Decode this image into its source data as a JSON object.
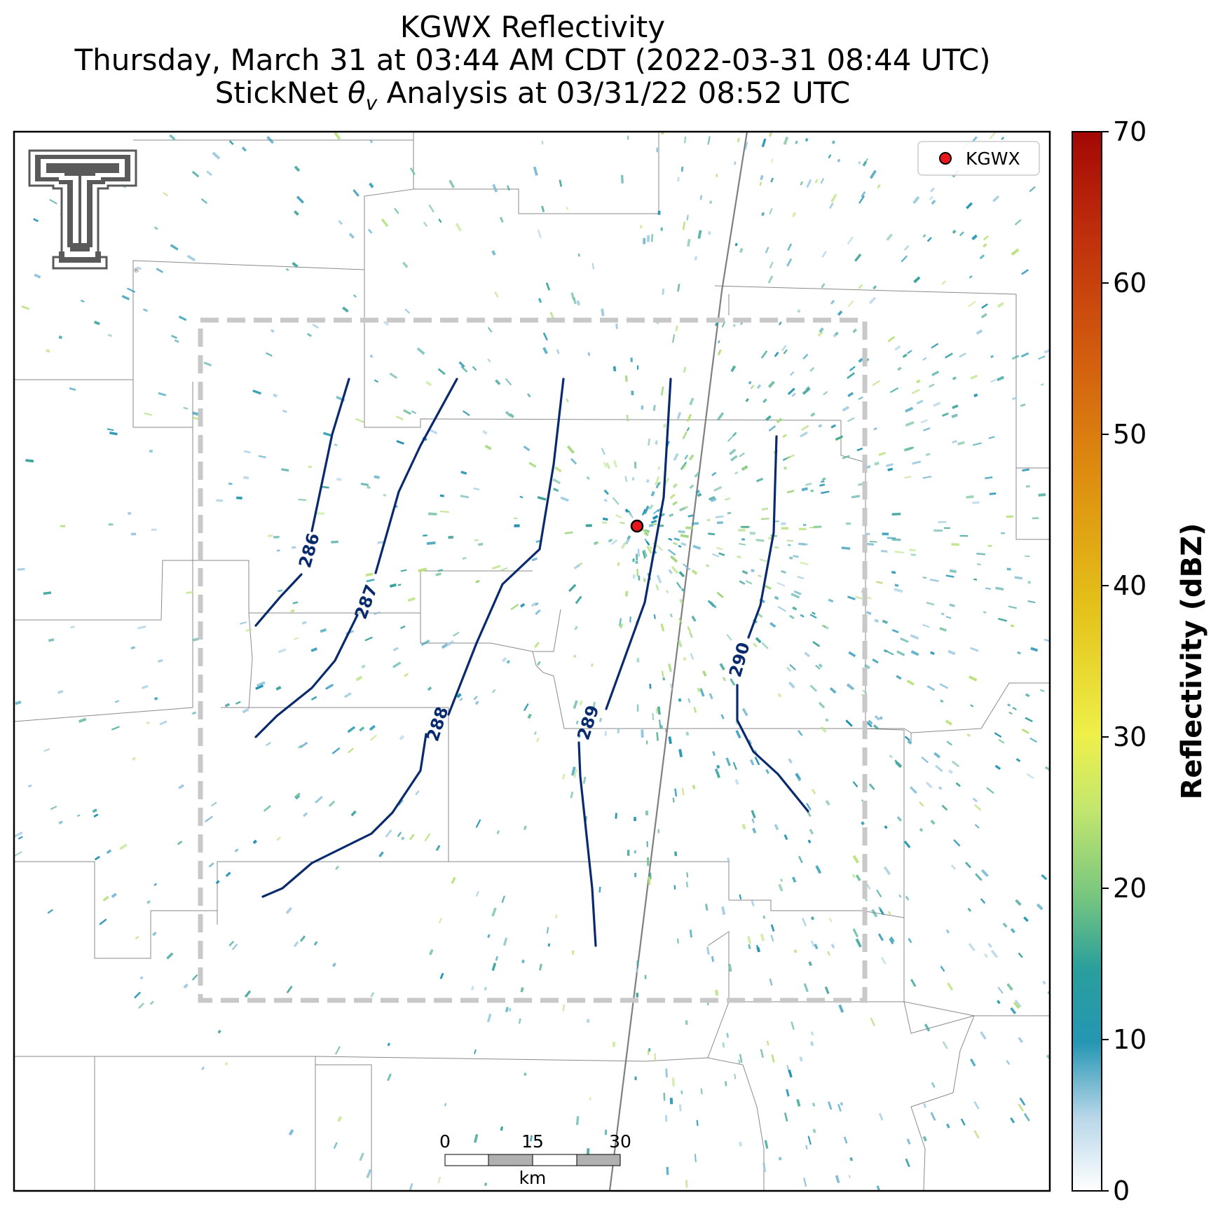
{
  "header": {
    "title_line1": "KGWX Reflectivity",
    "title_line2": "Thursday, March 31 at 03:44 AM CDT (2022-03-31 08:44 UTC)",
    "title_line3_prefix": "StickNet ",
    "title_line3_symbol": "θ",
    "title_line3_subscript": "v",
    "title_line3_suffix": " Analysis at 03/31/22 08:52 UTC"
  },
  "legend": {
    "marker_label": "KGWX",
    "marker_color": "#e8171b"
  },
  "colorbar": {
    "label": "Reflectivity (dBZ)",
    "ticks": [
      "0",
      "10",
      "20",
      "30",
      "40",
      "50",
      "60",
      "70"
    ],
    "min": 0,
    "max": 70,
    "colors": [
      "#ffffff",
      "#9ec9e2",
      "#2596b3",
      "#1f9a9a",
      "#5fbf88",
      "#b5e07a",
      "#eef04a",
      "#e6c41a",
      "#e29a10",
      "#d9650f",
      "#c8300c",
      "#a80a05"
    ]
  },
  "contours": {
    "color": "#0a2a6e",
    "labels": [
      "286",
      "287",
      "288",
      "289",
      "290"
    ]
  },
  "scale_bar": {
    "ticks": [
      "0",
      "15",
      "30"
    ],
    "unit": "km"
  },
  "logo": {
    "name": "Texas Tech Double T"
  }
}
